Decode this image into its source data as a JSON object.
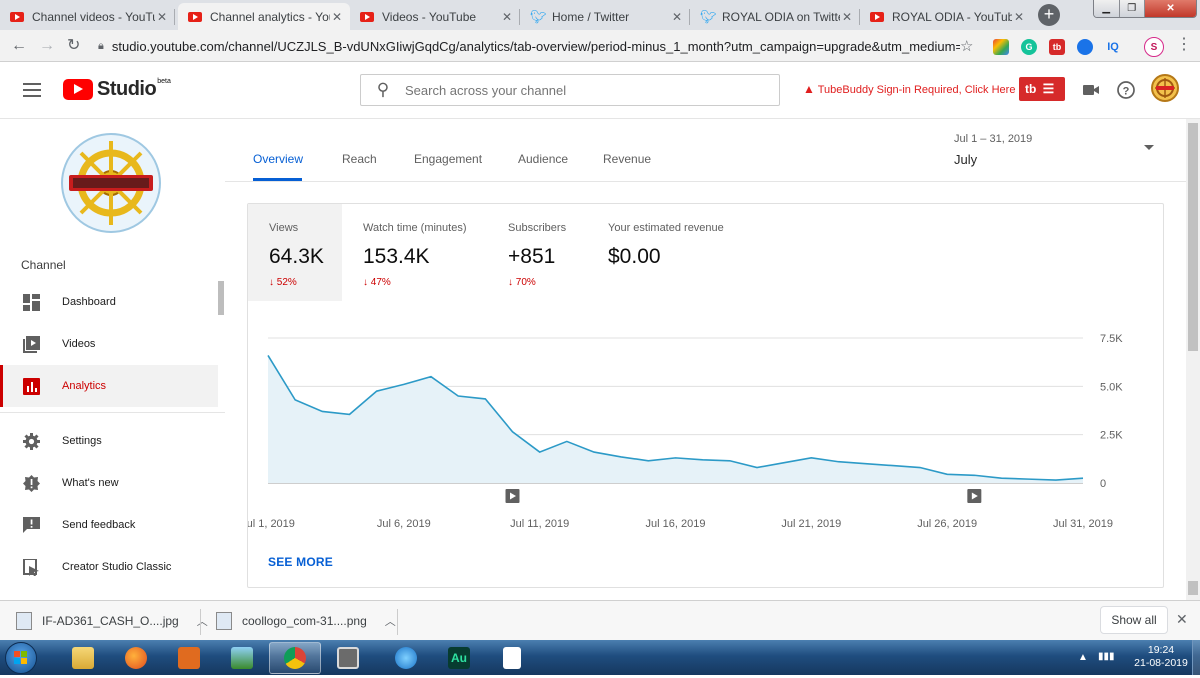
{
  "browser": {
    "tabs": [
      {
        "title": "Channel videos - YouTube",
        "icon": "youtube-icon",
        "active": false
      },
      {
        "title": "Channel analytics - YouTube",
        "icon": "youtube-icon",
        "active": true
      },
      {
        "title": "Videos - YouTube",
        "icon": "youtube-icon",
        "active": false
      },
      {
        "title": "Home / Twitter",
        "icon": "twitter-icon",
        "active": false
      },
      {
        "title": "ROYAL ODIA on Twitter",
        "icon": "twitter-icon",
        "active": false
      },
      {
        "title": "ROYAL ODIA - YouTube",
        "icon": "youtube-icon",
        "active": false
      }
    ],
    "url": "studio.youtube.com/channel/UCZJLS_B-vdUNxGIiwjGqdCg/analytics/tab-overview/period-minus_1_month?utm_campaign=upgrade&utm_medium=r...",
    "extensions": [
      {
        "name": "color-ext-icon",
        "color": "#7b5cd6",
        "label": ""
      },
      {
        "name": "grammarly-icon",
        "color": "#15c39a",
        "label": "G"
      },
      {
        "name": "tubebuddy-ext-icon",
        "color": "#d62a2a",
        "label": "tb"
      },
      {
        "name": "blue-shield-ext-icon",
        "color": "#1a73e8",
        "label": ""
      },
      {
        "name": "iq-ext-icon",
        "color": "#ffffff",
        "label": "IQ"
      },
      {
        "name": "profile-avatar-icon",
        "color": "#ffffff",
        "label": "S"
      }
    ]
  },
  "studio": {
    "logo_text": "Studio",
    "logo_badge": "beta",
    "search_placeholder": "Search across your channel",
    "tubebuddy_warning": "TubeBuddy Sign-in Required, Click Here",
    "tubebuddy_button": "tb"
  },
  "sidebar": {
    "section_label": "Channel",
    "items": [
      {
        "label": "Dashboard",
        "icon": "dashboard-icon",
        "selected": false
      },
      {
        "label": "Videos",
        "icon": "videos-icon",
        "selected": false
      },
      {
        "label": "Analytics",
        "icon": "analytics-icon",
        "selected": true
      },
      {
        "label": "Settings",
        "icon": "gear-icon",
        "selected": false
      },
      {
        "label": "What's new",
        "icon": "alert-icon",
        "selected": false
      },
      {
        "label": "Send feedback",
        "icon": "feedback-icon",
        "selected": false
      },
      {
        "label": "Creator Studio Classic",
        "icon": "classic-studio-icon",
        "selected": false
      }
    ]
  },
  "analytics": {
    "tabs": [
      "Overview",
      "Reach",
      "Engagement",
      "Audience",
      "Revenue"
    ],
    "selected_tab": "Overview",
    "date_range": "Jul 1 – 31, 2019",
    "period": "July",
    "metrics": [
      {
        "label": "Views",
        "value": "64.3K",
        "change": "52%",
        "direction": "down",
        "selected": true
      },
      {
        "label": "Watch time (minutes)",
        "value": "153.4K",
        "change": "47%",
        "direction": "down",
        "selected": false
      },
      {
        "label": "Subscribers",
        "value": "+851",
        "change": "70%",
        "direction": "down",
        "selected": false
      },
      {
        "label": "Your estimated revenue",
        "value": "$0.00",
        "change": "",
        "direction": "",
        "selected": false
      }
    ],
    "see_more": "SEE MORE"
  },
  "chart_data": {
    "type": "area",
    "title": "",
    "xlabel": "",
    "ylabel": "",
    "x": [
      "Jul 1",
      "Jul 2",
      "Jul 3",
      "Jul 4",
      "Jul 5",
      "Jul 6",
      "Jul 7",
      "Jul 8",
      "Jul 9",
      "Jul 10",
      "Jul 11",
      "Jul 12",
      "Jul 13",
      "Jul 14",
      "Jul 15",
      "Jul 16",
      "Jul 17",
      "Jul 18",
      "Jul 19",
      "Jul 20",
      "Jul 21",
      "Jul 22",
      "Jul 23",
      "Jul 24",
      "Jul 25",
      "Jul 26",
      "Jul 27",
      "Jul 28",
      "Jul 29",
      "Jul 30",
      "Jul 31"
    ],
    "x_tick_labels": [
      "Jul 1, 2019",
      "Jul 6, 2019",
      "Jul 11, 2019",
      "Jul 16, 2019",
      "Jul 21, 2019",
      "Jul 26, 2019",
      "Jul 31, 2019"
    ],
    "x_tick_indices": [
      0,
      5,
      10,
      15,
      20,
      25,
      30
    ],
    "series": [
      {
        "values": [
          6600,
          4300,
          3700,
          3550,
          4750,
          5100,
          5500,
          4500,
          4350,
          2650,
          1600,
          2150,
          1600,
          1350,
          1150,
          1300,
          1200,
          1150,
          800,
          1050,
          1300,
          1100,
          1000,
          900,
          800,
          450,
          400,
          250,
          200,
          150,
          250
        ]
      }
    ],
    "y_ticks": [
      "0",
      "2.5K",
      "5.0K",
      "7.5K"
    ],
    "y_tick_values": [
      0,
      2500,
      5000,
      7500
    ],
    "ylim": [
      0,
      7500
    ],
    "grid": true,
    "line_color": "#2c9ac7",
    "fill_color": "#e6f2f8",
    "video_markers": [
      9,
      26
    ]
  },
  "downloads": {
    "items": [
      {
        "name": "IF-AD361_CASH_O....jpg"
      },
      {
        "name": "coollogo_com-31....png"
      }
    ],
    "show_all": "Show all"
  },
  "taskbar": {
    "clock_time": "19:24",
    "clock_date": "21-08-2019"
  }
}
